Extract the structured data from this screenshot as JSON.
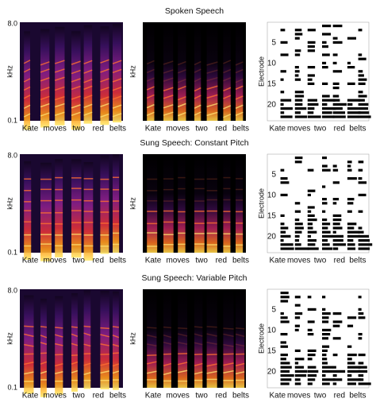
{
  "rows": [
    {
      "title": "Spoken Speech",
      "freq_axis": {
        "label": "kHz",
        "top": "8.0",
        "bottom": "0.1"
      },
      "electrode_axis": {
        "label": "Electrode",
        "ticks": [
          "5",
          "10",
          "15",
          "20"
        ]
      },
      "words": [
        "Kate",
        "moves",
        "two",
        "red",
        "belts"
      ]
    },
    {
      "title": "Sung Speech: Constant Pitch",
      "freq_axis": {
        "label": "kHz",
        "top": "8.0",
        "bottom": "0.1"
      },
      "electrode_axis": {
        "label": "Electrode",
        "ticks": [
          "5",
          "10",
          "15",
          "20"
        ]
      },
      "words": [
        "Kate",
        "moves",
        "two",
        "red",
        "belts"
      ]
    },
    {
      "title": "Sung Speech: Variable Pitch",
      "freq_axis": {
        "label": "kHz",
        "top": "8.0",
        "bottom": "0.1"
      },
      "electrode_axis": {
        "label": "Electrode",
        "ticks": [
          "5",
          "10",
          "15",
          "20"
        ]
      },
      "words": [
        "Kate",
        "moves",
        "two",
        "red",
        "belts"
      ]
    }
  ]
}
